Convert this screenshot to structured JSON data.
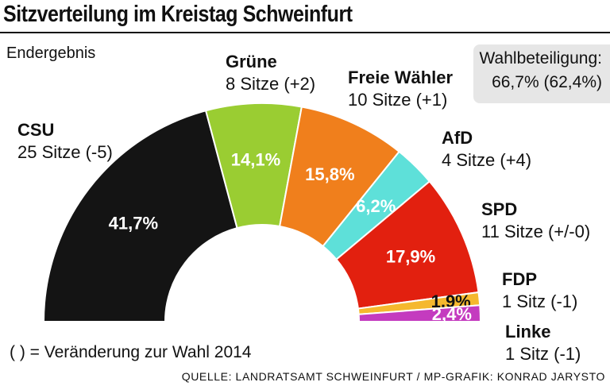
{
  "title": "Sitzverteilung im Kreistag Schweinfurt",
  "subtitle": "Endergebnis",
  "turnout": {
    "label": "Wahlbeteiligung:",
    "value": "66,7% (62,4%)"
  },
  "note": "( ) = Veränderung zur Wahl 2014",
  "source": "QUELLE: LANDRATSAMT SCHWEINFURT / MP-GRAFIK: KONRAD JARYSTO",
  "chart_data": {
    "type": "pie",
    "subtype": "semicircle-donut",
    "title": "Sitzverteilung im Kreistag Schweinfurt",
    "categories": [
      "CSU",
      "Grüne",
      "Freie Wähler",
      "AfD",
      "SPD",
      "FDP",
      "Linke"
    ],
    "values": [
      41.7,
      14.1,
      15.8,
      6.2,
      17.9,
      1.9,
      2.4
    ],
    "series": [
      {
        "name": "CSU",
        "value": 41.7,
        "label": "41,7%",
        "seats": "25 Sitze (-5)",
        "color": "#141414",
        "text_color": "#ffffff"
      },
      {
        "name": "Grüne",
        "value": 14.1,
        "label": "14,1%",
        "seats": "8 Sitze (+2)",
        "color": "#9acd32",
        "text_color": "#ffffff"
      },
      {
        "name": "Freie Wähler",
        "value": 15.8,
        "label": "15,8%",
        "seats": "10 Sitze (+1)",
        "color": "#f07f1c",
        "text_color": "#ffffff"
      },
      {
        "name": "AfD",
        "value": 6.2,
        "label": "6,2%",
        "seats": "4 Sitze (+4)",
        "color": "#5ee0d9",
        "text_color": "#ffffff"
      },
      {
        "name": "SPD",
        "value": 17.9,
        "label": "17,9%",
        "seats": "11 Sitze (+/-0)",
        "color": "#e2200f",
        "text_color": "#ffffff"
      },
      {
        "name": "FDP",
        "value": 1.9,
        "label": "1,9%",
        "seats": "1 Sitz (-1)",
        "color": "#f5b82e",
        "text_color": "#111111"
      },
      {
        "name": "Linke",
        "value": 2.4,
        "label": "2,4%",
        "seats": "1 Sitz (-1)",
        "color": "#c43bbf",
        "text_color": "#ffffff"
      }
    ]
  }
}
